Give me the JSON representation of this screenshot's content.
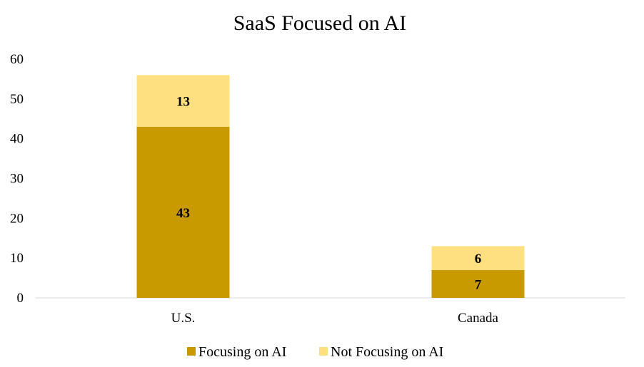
{
  "chart_data": {
    "type": "bar",
    "stacked": true,
    "title": "SaaS Focused on AI",
    "categories": [
      "U.S.",
      "Canada"
    ],
    "series": [
      {
        "name": "Focusing on AI",
        "values": [
          43,
          7
        ],
        "color": "#C89A00"
      },
      {
        "name": "Not Focusing on AI",
        "values": [
          13,
          6
        ],
        "color": "#FFE080"
      }
    ],
    "ylim": [
      0,
      60
    ],
    "yticks": [
      0,
      10,
      20,
      30,
      40,
      50,
      60
    ],
    "grid": false,
    "legend": "bottom"
  }
}
